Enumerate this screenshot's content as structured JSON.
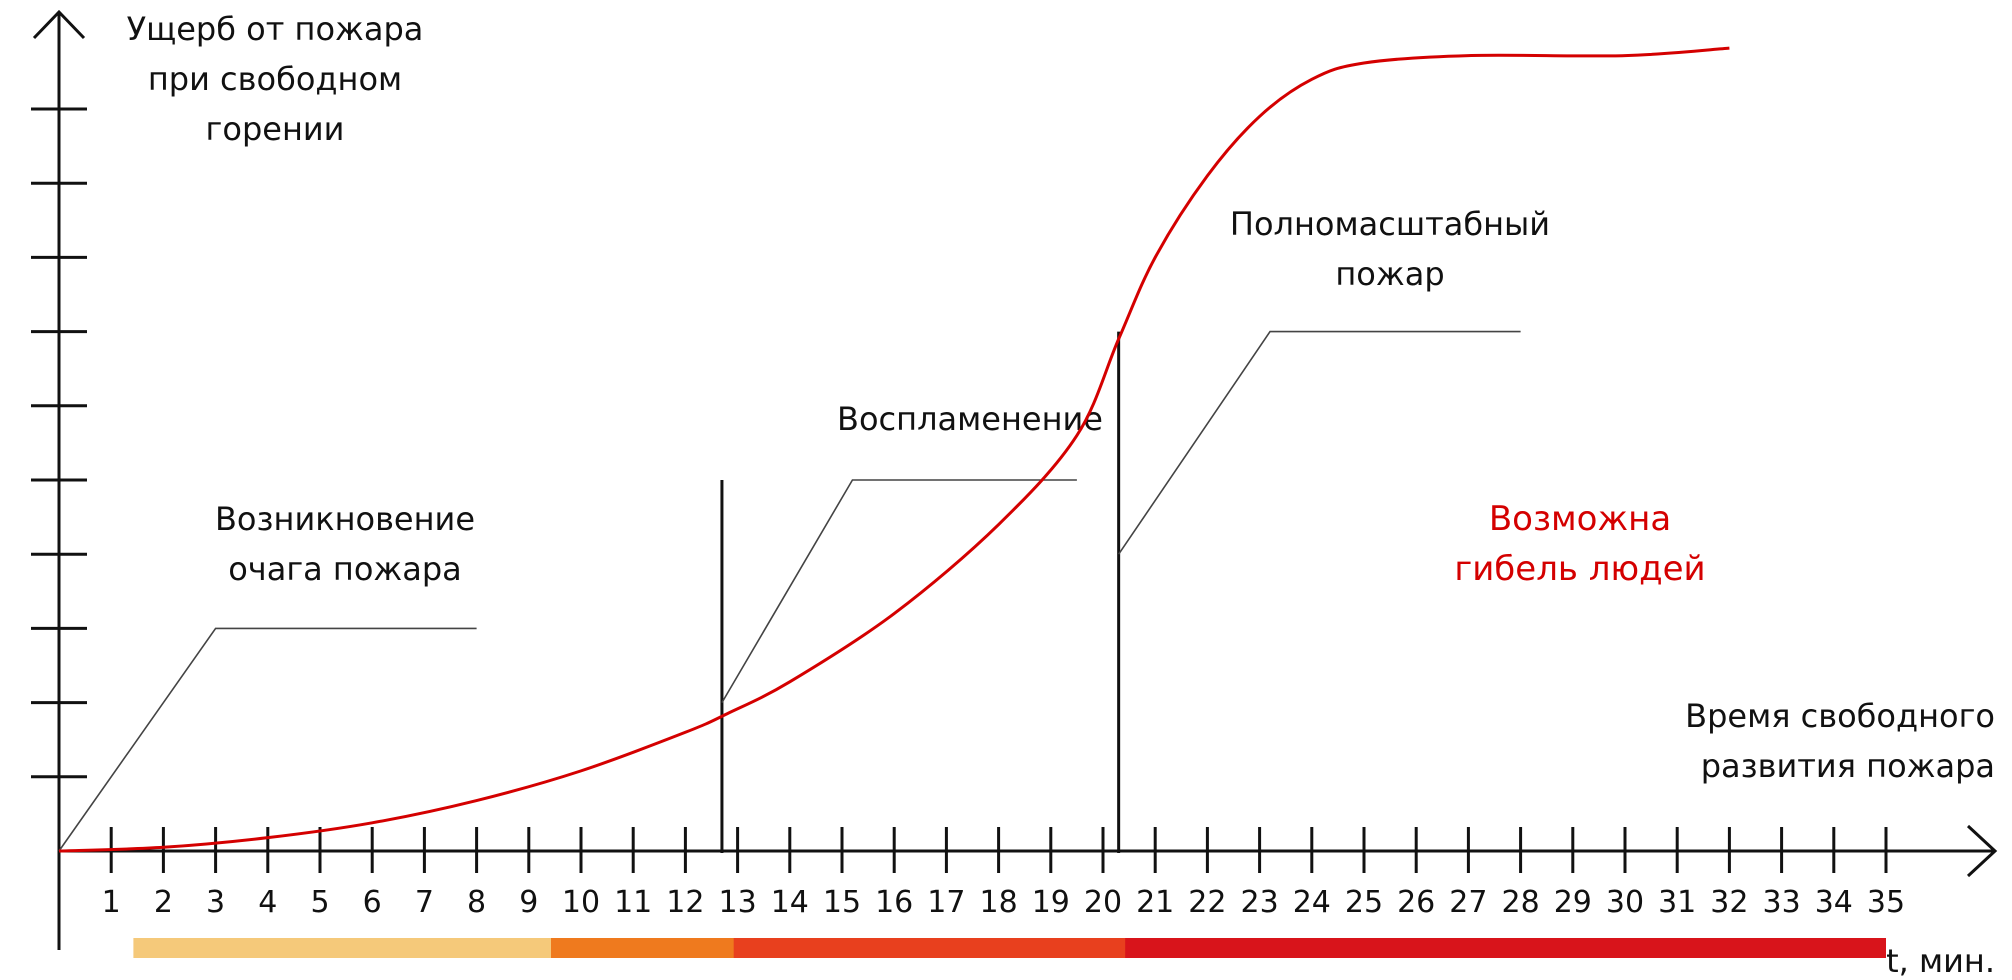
{
  "chart_data": {
    "type": "line",
    "ylabel": [
      "Ущерб от пожара",
      "при свободном",
      "горении"
    ],
    "xlabel": [
      "Время свободного",
      "развития пожара"
    ],
    "x_unit": "t, мин.",
    "xlim": [
      0,
      36
    ],
    "ylim": [
      0,
      11.5
    ],
    "x_ticks": [
      1,
      2,
      3,
      4,
      5,
      6,
      7,
      8,
      9,
      10,
      11,
      12,
      13,
      14,
      15,
      16,
      17,
      18,
      19,
      20,
      21,
      22,
      23,
      24,
      25,
      26,
      27,
      28,
      29,
      30,
      31,
      32,
      33,
      34,
      35
    ],
    "y_ticks": [
      1,
      2,
      3,
      4,
      5,
      6,
      7,
      8,
      9,
      10
    ],
    "grid": false,
    "series": [
      {
        "name": "",
        "color": "#d40000",
        "x": [
          0,
          2,
          4,
          6,
          8,
          10,
          12,
          12.8,
          14,
          16,
          18,
          19.5,
          20.3,
          21,
          22,
          23,
          24,
          25,
          27,
          30,
          32
        ],
        "y": [
          0,
          0.05,
          0.18,
          0.38,
          0.68,
          1.08,
          1.6,
          1.85,
          2.28,
          3.2,
          4.4,
          5.6,
          6.9,
          8.0,
          9.1,
          9.9,
          10.4,
          10.62,
          10.72,
          10.72,
          10.82
        ]
      }
    ],
    "phase_lines": [
      {
        "x": 12.7,
        "y_top": 5
      },
      {
        "x": 20.3,
        "y_top": 7
      }
    ],
    "annotations": [
      {
        "lines": [
          "Возникновение",
          "очага пожара"
        ],
        "leader": [
          [
            0,
            0
          ],
          [
            3,
            3
          ],
          [
            8,
            3
          ]
        ]
      },
      {
        "lines": [
          "Воспламенение"
        ],
        "leader": [
          [
            12.7,
            2
          ],
          [
            15.2,
            5
          ],
          [
            19.5,
            5
          ]
        ]
      },
      {
        "lines": [
          "Полномасштабный",
          "пожар"
        ],
        "leader": [
          [
            20.3,
            4
          ],
          [
            23.2,
            7
          ],
          [
            28,
            7
          ]
        ]
      }
    ],
    "highlight": {
      "lines": [
        "Возможна",
        "гибель людей"
      ],
      "color": "#d40000"
    },
    "phase_bars": [
      {
        "x0": 2,
        "x1": 9.5,
        "color": "#f5c97a"
      },
      {
        "x0": 10,
        "x1": 13,
        "color": "#ef7a1e"
      },
      {
        "x0": 13.5,
        "x1": 20.5,
        "color": "#e8401e"
      },
      {
        "x0": 21,
        "x1": 35,
        "color": "#d8141b"
      }
    ]
  }
}
